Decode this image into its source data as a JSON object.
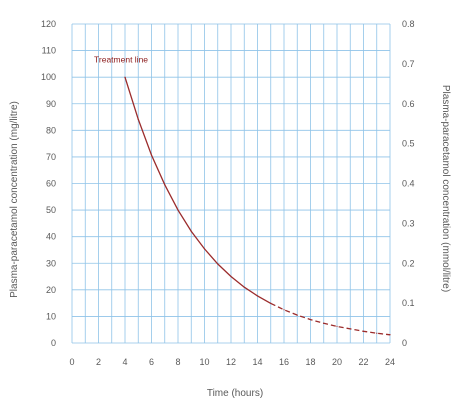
{
  "chart_data": {
    "type": "line",
    "title": "",
    "xlabel": "Time (hours)",
    "ylabel": "Plasma-paracetamol concentration (mg/litre)",
    "y2label": "Plasma-paracetamol concentration (mmol/litre)",
    "xlim": [
      0,
      24
    ],
    "ylim": [
      0,
      120
    ],
    "y2lim": [
      0,
      0.8
    ],
    "x_ticks": [
      "0",
      "2",
      "4",
      "6",
      "8",
      "10",
      "12",
      "14",
      "16",
      "18",
      "20",
      "22",
      "24"
    ],
    "y_ticks": [
      "0",
      "10",
      "20",
      "30",
      "40",
      "50",
      "60",
      "70",
      "80",
      "90",
      "100",
      "110",
      "120"
    ],
    "y2_ticks": [
      "0",
      "0.1",
      "0.2",
      "0.3",
      "0.4",
      "0.5",
      "0.6",
      "0.7",
      "0.8"
    ],
    "grid": true,
    "grid_color": "#8fc3e8",
    "series": [
      {
        "color": "#9b2c2c",
        "solid_until_x": 15,
        "x": [
          4,
          5,
          6,
          7,
          8,
          9,
          10,
          11,
          12,
          13,
          14,
          15,
          16,
          17,
          18,
          19,
          20,
          21,
          22,
          23,
          24
        ],
        "values": [
          100,
          84.1,
          70.7,
          59.5,
          50.0,
          42.0,
          35.4,
          29.7,
          25.0,
          21.0,
          17.7,
          14.9,
          12.5,
          10.5,
          8.8,
          7.4,
          6.25,
          5.3,
          4.4,
          3.7,
          3.1
        ]
      }
    ],
    "annotations": [
      {
        "text": "Treatment line",
        "x": 3.7,
        "y": 105.5
      }
    ]
  }
}
